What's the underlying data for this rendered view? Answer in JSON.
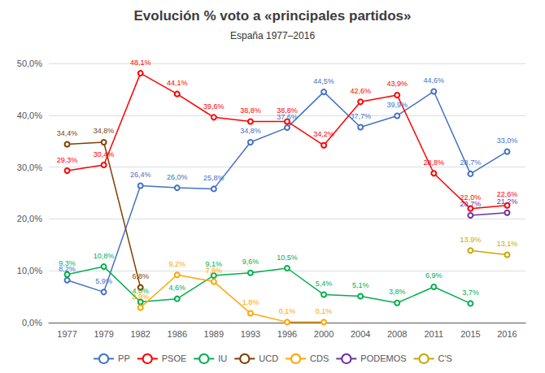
{
  "chart_data": {
    "type": "line",
    "title": "Evolución % voto a «principales partidos»",
    "subtitle": "España 1977–2016",
    "categories": [
      "1977",
      "1979",
      "1982",
      "1986",
      "1989",
      "1993",
      "1996",
      "2000",
      "2004",
      "2008",
      "2011",
      "2015",
      "2016"
    ],
    "series": [
      {
        "name": "PP",
        "color": "#4472C4",
        "values": [
          8.2,
          5.9,
          26.4,
          26.0,
          25.8,
          34.8,
          37.6,
          44.5,
          37.7,
          39.9,
          44.6,
          28.7,
          33.0
        ],
        "value_labels": [
          "8,2%",
          "5,9%",
          "26,4%",
          "26,0%",
          "25,8%",
          "34,8%",
          "37,6%",
          "44,5%",
          "37,7%",
          "39,9%",
          "44,6%",
          "28,7%",
          "33,0%"
        ]
      },
      {
        "name": "PSOE",
        "color": "#FF0000",
        "values": [
          29.3,
          30.4,
          48.1,
          44.1,
          39.6,
          38.8,
          38.8,
          34.2,
          42.6,
          43.9,
          28.8,
          22.0,
          22.6
        ],
        "value_labels": [
          "29,3%",
          "30,4%",
          "48,1%",
          "44,1%",
          "39,6%",
          "38,8%",
          "38,8%",
          "34,2%",
          "42,6%",
          "43,9%",
          "28,8%",
          "22,0%",
          "22,6%"
        ]
      },
      {
        "name": "IU",
        "color": "#00B050",
        "values": [
          9.3,
          10.8,
          4.0,
          4.6,
          9.1,
          9.6,
          10.5,
          5.4,
          5.1,
          3.8,
          6.9,
          3.7,
          null
        ],
        "value_labels": [
          "9,3%",
          "10,8%",
          "4,0%",
          "4,6%",
          "9,1%",
          "9,6%",
          "10,5%",
          "5,4%",
          "5,1%",
          "3,8%",
          "6,9%",
          "3,7%",
          null
        ]
      },
      {
        "name": "UCD",
        "color": "#7F3F00",
        "values": [
          34.4,
          34.8,
          6.8,
          null,
          null,
          null,
          null,
          null,
          null,
          null,
          null,
          null,
          null
        ],
        "value_labels": [
          "34,4%",
          "34,8%",
          "6,8%",
          null,
          null,
          null,
          null,
          null,
          null,
          null,
          null,
          null,
          null
        ]
      },
      {
        "name": "CDS",
        "color": "#FFA500",
        "values": [
          null,
          null,
          2.9,
          9.2,
          7.9,
          1.8,
          0.1,
          0.1,
          null,
          null,
          null,
          null,
          null
        ],
        "value_labels": [
          null,
          null,
          "2,9%",
          "9,2%",
          "7,9%",
          "1,8%",
          "0,1%",
          "0,1%",
          null,
          null,
          null,
          null,
          null
        ]
      },
      {
        "name": "PODEMOS",
        "color": "#7030A0",
        "values": [
          null,
          null,
          null,
          null,
          null,
          null,
          null,
          null,
          null,
          null,
          null,
          20.7,
          21.2
        ],
        "value_labels": [
          null,
          null,
          null,
          null,
          null,
          null,
          null,
          null,
          null,
          null,
          null,
          "20,7%",
          "21,2%"
        ]
      },
      {
        "name": "C'S",
        "color": "#C8A800",
        "values": [
          null,
          null,
          null,
          null,
          null,
          null,
          null,
          null,
          null,
          null,
          null,
          13.9,
          13.1
        ],
        "value_labels": [
          null,
          null,
          null,
          null,
          null,
          null,
          null,
          null,
          null,
          null,
          null,
          "13,9%",
          "13,1%"
        ]
      }
    ],
    "ylim": [
      0,
      50
    ],
    "yticks": [
      {
        "value": 0,
        "label": "0,0%"
      },
      {
        "value": 10,
        "label": "10,0%"
      },
      {
        "value": 20,
        "label": "20,0%"
      },
      {
        "value": 30,
        "label": "30,0%"
      },
      {
        "value": 40,
        "label": "40,0%"
      },
      {
        "value": 50,
        "label": "50,0%"
      }
    ],
    "grid": true,
    "legend": "bottom",
    "data_labels": true,
    "marker": "circle"
  }
}
